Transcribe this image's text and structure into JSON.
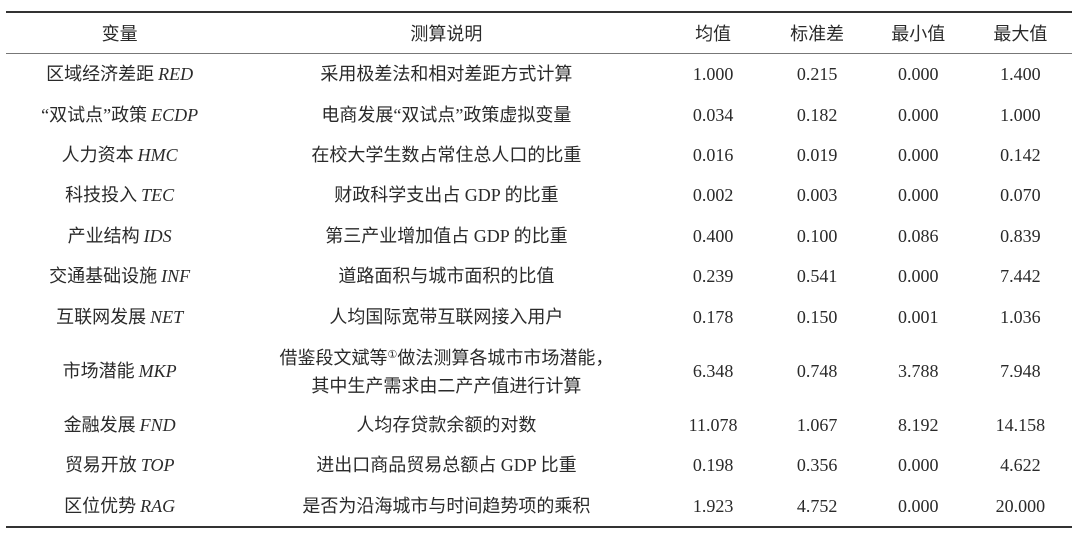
{
  "headers": [
    "变量",
    "测算说明",
    "均值",
    "标准差",
    "最小值",
    "最大值"
  ],
  "rows": [
    {
      "name": "区域经济差距",
      "code": "RED",
      "desc": "采用极差法和相对差距方式计算",
      "mean": "1.000",
      "sd": "0.215",
      "min": "0.000",
      "max": "1.400"
    },
    {
      "name": "“双试点”政策",
      "code": "ECDP",
      "desc": "电商发展“双试点”政策虚拟变量",
      "mean": "0.034",
      "sd": "0.182",
      "min": "0.000",
      "max": "1.000"
    },
    {
      "name": "人力资本",
      "code": "HMC",
      "desc": "在校大学生数占常住总人口的比重",
      "mean": "0.016",
      "sd": "0.019",
      "min": "0.000",
      "max": "0.142"
    },
    {
      "name": "科技投入",
      "code": "TEC",
      "desc": "财政科学支出占 GDP 的比重",
      "mean": "0.002",
      "sd": "0.003",
      "min": "0.000",
      "max": "0.070"
    },
    {
      "name": "产业结构",
      "code": "IDS",
      "desc": "第三产业增加值占 GDP 的比重",
      "mean": "0.400",
      "sd": "0.100",
      "min": "0.086",
      "max": "0.839"
    },
    {
      "name": "交通基础设施",
      "code": "INF",
      "desc": "道路面积与城市面积的比值",
      "mean": "0.239",
      "sd": "0.541",
      "min": "0.000",
      "max": "7.442"
    },
    {
      "name": "互联网发展",
      "code": "NET",
      "desc": "人均国际宽带互联网接入用户",
      "mean": "0.178",
      "sd": "0.150",
      "min": "0.001",
      "max": "1.036"
    },
    {
      "name": "市场潜能",
      "code": "MKP",
      "desc_a": "借鉴段文斌等",
      "desc_note": "①",
      "desc_b": "做法测算各城市市场潜能，",
      "desc_c": "其中生产需求由二产产值进行计算",
      "mean": "6.348",
      "sd": "0.748",
      "min": "3.788",
      "max": "7.948"
    },
    {
      "name": "金融发展",
      "code": "FND",
      "desc": "人均存贷款余额的对数",
      "mean": "11.078",
      "sd": "1.067",
      "min": "8.192",
      "max": "14.158"
    },
    {
      "name": "贸易开放",
      "code": "TOP",
      "desc": "进出口商品贸易总额占 GDP 比重",
      "mean": "0.198",
      "sd": "0.356",
      "min": "0.000",
      "max": "4.622"
    },
    {
      "name": "区位优势",
      "code": "RAG",
      "desc": "是否为沿海城市与时间趋势项的乘积",
      "mean": "1.923",
      "sd": "4.752",
      "min": "0.000",
      "max": "20.000"
    }
  ]
}
